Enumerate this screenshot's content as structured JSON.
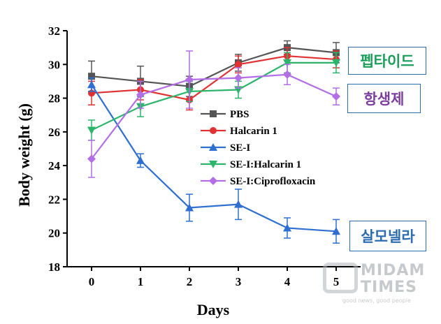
{
  "chart_data": {
    "type": "line",
    "title": "",
    "xlabel": "Days",
    "ylabel": "Body weight (g)",
    "x": [
      0,
      1,
      2,
      3,
      4,
      5
    ],
    "xlim": [
      -0.5,
      5.5
    ],
    "ylim": [
      18,
      32
    ],
    "yticks": [
      18,
      20,
      22,
      24,
      26,
      28,
      30,
      32
    ],
    "xticks": [
      0,
      1,
      2,
      3,
      4,
      5
    ],
    "grid": false,
    "legend_position": "center",
    "series": [
      {
        "name": "PBS",
        "color": "#555555",
        "marker": "square",
        "values": [
          29.3,
          29.0,
          28.7,
          30.1,
          31.0,
          30.7
        ],
        "errors": [
          0.9,
          0.9,
          0.6,
          0.5,
          0.4,
          0.6
        ]
      },
      {
        "name": "Halcarin 1",
        "color": "#e03232",
        "marker": "circle",
        "values": [
          28.3,
          28.5,
          27.9,
          30.0,
          30.5,
          30.3
        ],
        "errors": [
          0.7,
          0.6,
          0.6,
          0.5,
          0.5,
          0.5
        ]
      },
      {
        "name": "SE-I",
        "color": "#2e6fd1",
        "marker": "triangle",
        "values": [
          28.8,
          24.3,
          21.5,
          21.7,
          20.3,
          20.1
        ],
        "errors": [
          0.4,
          0.4,
          0.8,
          0.9,
          0.6,
          0.7
        ]
      },
      {
        "name": "SE-I:Halcarin 1",
        "color": "#2bb56b",
        "marker": "triangle-down",
        "values": [
          26.1,
          27.5,
          28.4,
          28.5,
          30.1,
          30.1
        ],
        "errors": [
          0.6,
          0.6,
          0.6,
          0.5,
          0.6,
          0.6
        ]
      },
      {
        "name": "SE-I:Ciprofloxacin",
        "color": "#b36ee6",
        "marker": "diamond",
        "values": [
          24.4,
          28.2,
          29.1,
          29.2,
          29.4,
          28.1
        ],
        "errors": [
          1.1,
          0.8,
          1.7,
          0.6,
          0.6,
          0.5
        ]
      }
    ]
  },
  "annotations": {
    "peptide": "펩타이드",
    "antibiotic": "항생제",
    "salmonella": "살모넬라"
  },
  "watermark": {
    "brand": "MIDAM TIMES",
    "brand_line1": "MIDAM",
    "brand_line2": "TIMES",
    "slogan": "good news, good people"
  }
}
